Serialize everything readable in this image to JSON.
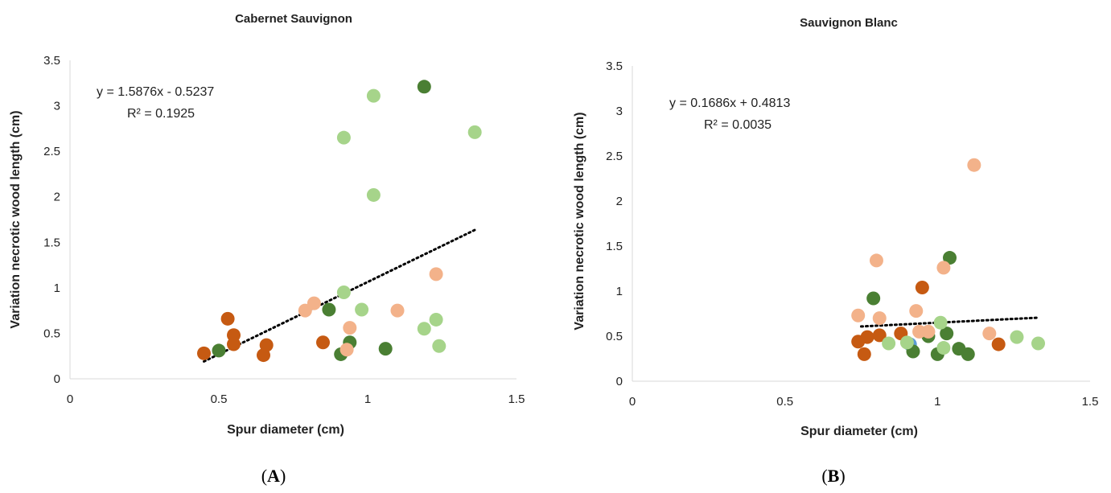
{
  "colors": {
    "dark_green": "#4a7f33",
    "light_green": "#a6d48a",
    "dark_orange": "#c65a12",
    "light_orange": "#f3b28a",
    "blue": "#5b9bd5",
    "trendline": "#000000"
  },
  "chart_data": [
    {
      "type": "scatter",
      "panel": "A",
      "title": "Cabernet Sauvignon",
      "xlabel": "Spur diameter (cm)",
      "ylabel": "Variation necrotic wood length (cm)",
      "xlim": [
        0,
        1.5
      ],
      "ylim": [
        0,
        3.5
      ],
      "xticks": [
        0,
        0.5,
        1,
        1.5
      ],
      "xtick_labels": [
        "0",
        "0.5",
        "1",
        "1.5"
      ],
      "yticks": [
        0,
        0.5,
        1,
        1.5,
        2,
        2.5,
        3,
        3.5
      ],
      "ytick_labels": [
        "0",
        "0.5",
        "1",
        "1.5",
        "2",
        "2.5",
        "3",
        "3.5"
      ],
      "grid": false,
      "trendline": {
        "slope": 1.5876,
        "intercept": -0.5237,
        "x_range": [
          0.45,
          1.36
        ],
        "style": "dotted"
      },
      "annotation_line1": "y = 1.5876x - 0.5237",
      "annotation_line2": "R² = 0.1925",
      "points": [
        {
          "x": 0.45,
          "y": 0.28,
          "color": "dark_orange"
        },
        {
          "x": 0.53,
          "y": 0.66,
          "color": "dark_orange"
        },
        {
          "x": 0.55,
          "y": 0.48,
          "color": "dark_orange"
        },
        {
          "x": 0.55,
          "y": 0.38,
          "color": "dark_orange"
        },
        {
          "x": 0.65,
          "y": 0.26,
          "color": "dark_orange"
        },
        {
          "x": 0.66,
          "y": 0.37,
          "color": "dark_orange"
        },
        {
          "x": 0.85,
          "y": 0.4,
          "color": "dark_orange"
        },
        {
          "x": 0.5,
          "y": 0.31,
          "color": "dark_green"
        },
        {
          "x": 0.87,
          "y": 0.76,
          "color": "dark_green"
        },
        {
          "x": 0.91,
          "y": 0.27,
          "color": "dark_green"
        },
        {
          "x": 0.94,
          "y": 0.4,
          "color": "dark_green"
        },
        {
          "x": 1.06,
          "y": 0.33,
          "color": "dark_green"
        },
        {
          "x": 1.19,
          "y": 3.21,
          "color": "dark_green"
        },
        {
          "x": 0.92,
          "y": 2.65,
          "color": "light_green"
        },
        {
          "x": 0.92,
          "y": 0.95,
          "color": "light_green"
        },
        {
          "x": 0.98,
          "y": 0.76,
          "color": "light_green"
        },
        {
          "x": 1.02,
          "y": 3.11,
          "color": "light_green"
        },
        {
          "x": 1.02,
          "y": 2.02,
          "color": "light_green"
        },
        {
          "x": 1.19,
          "y": 0.55,
          "color": "light_green"
        },
        {
          "x": 1.23,
          "y": 0.65,
          "color": "light_green"
        },
        {
          "x": 1.24,
          "y": 0.36,
          "color": "light_green"
        },
        {
          "x": 1.36,
          "y": 2.71,
          "color": "light_green"
        },
        {
          "x": 0.79,
          "y": 0.75,
          "color": "light_orange"
        },
        {
          "x": 0.82,
          "y": 0.83,
          "color": "light_orange"
        },
        {
          "x": 0.93,
          "y": 0.32,
          "color": "light_orange"
        },
        {
          "x": 0.94,
          "y": 0.56,
          "color": "light_orange"
        },
        {
          "x": 1.1,
          "y": 0.75,
          "color": "light_orange"
        },
        {
          "x": 1.23,
          "y": 1.15,
          "color": "light_orange"
        }
      ]
    },
    {
      "type": "scatter",
      "panel": "B",
      "title": "Sauvignon Blanc",
      "xlabel": "Spur diameter (cm)",
      "ylabel": "Variation necrotic wood length (cm)",
      "xlim": [
        0,
        1.5
      ],
      "ylim": [
        0,
        3.5
      ],
      "xticks": [
        0,
        0.5,
        1,
        1.5
      ],
      "xtick_labels": [
        "0",
        "0.5",
        "1",
        "1.5"
      ],
      "yticks": [
        0,
        0.5,
        1,
        1.5,
        2,
        2.5,
        3,
        3.5
      ],
      "ytick_labels": [
        "0",
        "0.5",
        "1",
        "1.5",
        "2",
        "2.5",
        "3",
        "3.5"
      ],
      "grid": false,
      "trendline": {
        "slope": 0.1686,
        "intercept": 0.4813,
        "x_range": [
          0.75,
          1.33
        ],
        "style": "dotted"
      },
      "annotation_line1": "y = 0.1686x + 0.4813",
      "annotation_line2": "R² = 0.0035",
      "points": [
        {
          "x": 0.74,
          "y": 0.44,
          "color": "dark_orange"
        },
        {
          "x": 0.76,
          "y": 0.3,
          "color": "dark_orange"
        },
        {
          "x": 0.77,
          "y": 0.49,
          "color": "dark_orange"
        },
        {
          "x": 0.81,
          "y": 0.51,
          "color": "dark_orange"
        },
        {
          "x": 0.88,
          "y": 0.53,
          "color": "dark_orange"
        },
        {
          "x": 0.95,
          "y": 1.04,
          "color": "dark_orange"
        },
        {
          "x": 1.2,
          "y": 0.41,
          "color": "dark_orange"
        },
        {
          "x": 0.91,
          "y": 0.41,
          "color": "blue"
        },
        {
          "x": 0.79,
          "y": 0.92,
          "color": "dark_green"
        },
        {
          "x": 0.92,
          "y": 0.33,
          "color": "dark_green"
        },
        {
          "x": 0.97,
          "y": 0.5,
          "color": "dark_green"
        },
        {
          "x": 1.0,
          "y": 0.3,
          "color": "dark_green"
        },
        {
          "x": 1.03,
          "y": 0.53,
          "color": "dark_green"
        },
        {
          "x": 1.04,
          "y": 1.37,
          "color": "dark_green"
        },
        {
          "x": 1.07,
          "y": 0.36,
          "color": "dark_green"
        },
        {
          "x": 1.1,
          "y": 0.3,
          "color": "dark_green"
        },
        {
          "x": 0.84,
          "y": 0.42,
          "color": "light_green"
        },
        {
          "x": 0.9,
          "y": 0.43,
          "color": "light_green"
        },
        {
          "x": 1.01,
          "y": 0.65,
          "color": "light_green"
        },
        {
          "x": 1.02,
          "y": 0.37,
          "color": "light_green"
        },
        {
          "x": 1.26,
          "y": 0.49,
          "color": "light_green"
        },
        {
          "x": 1.33,
          "y": 0.42,
          "color": "light_green"
        },
        {
          "x": 0.74,
          "y": 0.73,
          "color": "light_orange"
        },
        {
          "x": 0.8,
          "y": 1.34,
          "color": "light_orange"
        },
        {
          "x": 0.81,
          "y": 0.7,
          "color": "light_orange"
        },
        {
          "x": 0.93,
          "y": 0.78,
          "color": "light_orange"
        },
        {
          "x": 0.94,
          "y": 0.55,
          "color": "light_orange"
        },
        {
          "x": 0.97,
          "y": 0.55,
          "color": "light_orange"
        },
        {
          "x": 1.02,
          "y": 1.26,
          "color": "light_orange"
        },
        {
          "x": 1.12,
          "y": 2.4,
          "color": "light_orange"
        },
        {
          "x": 1.17,
          "y": 0.53,
          "color": "light_orange"
        }
      ]
    }
  ]
}
